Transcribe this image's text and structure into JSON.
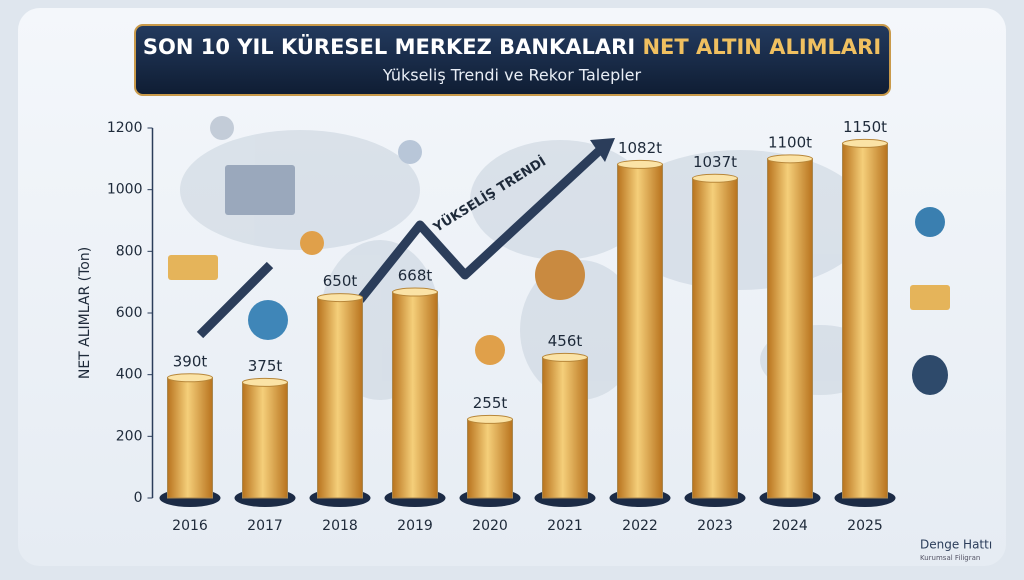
{
  "chart_data": {
    "type": "bar",
    "title": [
      "SON 10 YIL KÜRESEL MERKEZ BANKALARI",
      "NET ALTIN ALIMLARI"
    ],
    "subtitle": "Yükseliş Trendi ve Rekor Talepler",
    "y_label": "NET ALIMLAR (Ton)",
    "annotation": "YÜKSELİŞ TRENDİ",
    "watermark": [
      "Denge Hattı",
      "Kurumsal Filigran"
    ],
    "categories": [
      "2016",
      "2017",
      "2018",
      "2019",
      "2020",
      "2021",
      "2022",
      "2023",
      "2024",
      "2025"
    ],
    "values": [
      390,
      375,
      650,
      668,
      255,
      456,
      1082,
      1037,
      1100,
      1150
    ],
    "value_labels": [
      "390t",
      "375t",
      "650t",
      "668t",
      "255t",
      "456t",
      "1082t",
      "1037t",
      "1100t",
      "1150t"
    ],
    "color": "#f5cf7a",
    "ylim": [
      0,
      1200
    ],
    "yticks": [
      0,
      200,
      400,
      600,
      800,
      1000,
      1200
    ],
    "grid": false
  }
}
